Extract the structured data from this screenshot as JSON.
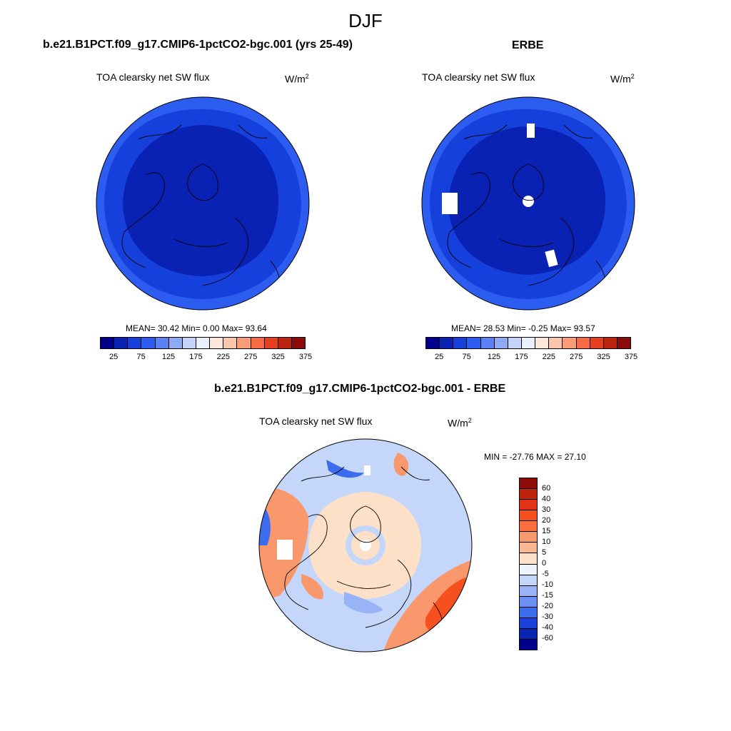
{
  "page": {
    "title": "DJF"
  },
  "panels": {
    "model": {
      "title": "b.e21.B1PCT.f09_g17.CMIP6-1pctCO2-bgc.001 (yrs 25-49)",
      "variable": "TOA clearsky net SW flux",
      "units_base": "W/m",
      "units_exp": "2",
      "stats": "MEAN=  30.42  Min=   0.00  Max=  93.64"
    },
    "obs": {
      "title": "ERBE",
      "variable": "TOA clearsky net SW flux",
      "units_base": "W/m",
      "units_exp": "2",
      "stats": "MEAN=  28.53  Min=  -0.25  Max=  93.57"
    },
    "diff": {
      "title": "b.e21.B1PCT.f09_g17.CMIP6-1pctCO2-bgc.001 - ERBE",
      "variable": "TOA clearsky net SW flux",
      "units_base": "W/m",
      "units_exp": "2",
      "stats": "MIN = -27.76 MAX =  27.10"
    }
  },
  "colorbar_abs": {
    "colors": [
      "#00008b",
      "#0a22b4",
      "#1640dc",
      "#2c5cf0",
      "#5a82f4",
      "#8eaaf6",
      "#c4d4fa",
      "#e8f0fe",
      "#fde6da",
      "#fcc6aa",
      "#fa9c78",
      "#f66a44",
      "#e8401e",
      "#bc2410",
      "#8b0a0a"
    ],
    "ticks": [
      "25",
      "75",
      "125",
      "175",
      "225",
      "275",
      "325",
      "375"
    ]
  },
  "colorbar_diff": {
    "colors": [
      "#8b0a0a",
      "#bc2410",
      "#e03218",
      "#f6501e",
      "#f87040",
      "#f8986c",
      "#fab892",
      "#fde0c8",
      "#eef4fe",
      "#c4d6fa",
      "#98b4f6",
      "#6c90f2",
      "#3c6cee",
      "#1a42d8",
      "#0a24b0",
      "#00008b"
    ],
    "ticks": [
      "60",
      "40",
      "30",
      "20",
      "15",
      "10",
      "5",
      "0",
      "-5",
      "-10",
      "-15",
      "-20",
      "-30",
      "-40",
      "-60"
    ]
  },
  "map_colors": {
    "abs_outer": "#2c5cf0",
    "abs_mid": "#1640dc",
    "abs_inner": "#0a22b4",
    "diff_base": "#c4d6fa",
    "diff_warm1": "#fde0c8",
    "diff_warm2": "#f8986c",
    "diff_warm3": "#f6501e",
    "diff_cool1": "#98b4f6",
    "diff_cool2": "#3c6cee"
  }
}
